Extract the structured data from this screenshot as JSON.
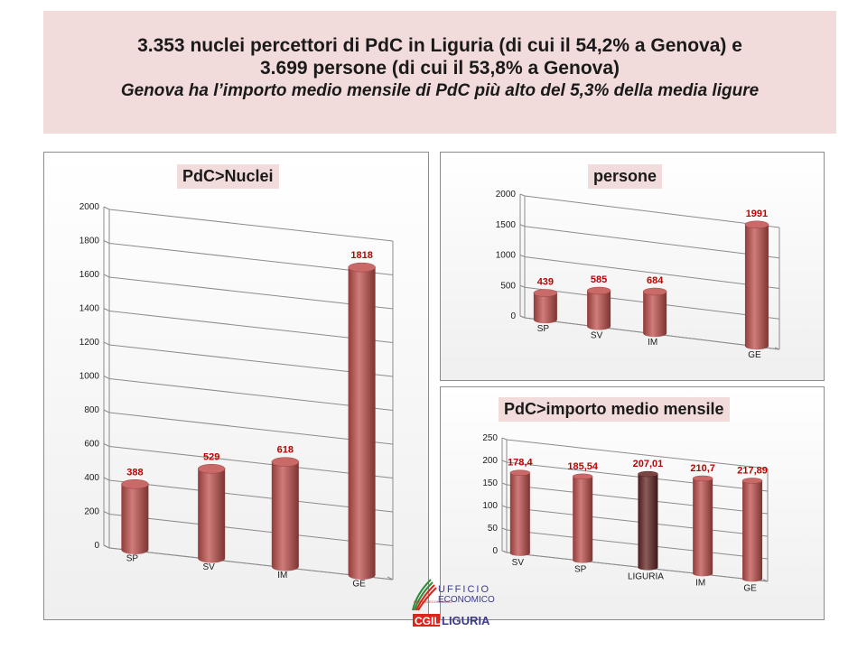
{
  "header": {
    "line1": "3.353 nuclei percettori di PdC in Liguria (di cui il 54,2% a Genova) e",
    "line2": "3.699 persone (di cui il 53,8% a Genova)",
    "line3": "Genova ha l’importo medio mensile di PdC più alto del 5,3% della media ligure"
  },
  "colors": {
    "bar": "#c0504d",
    "bar_highlight": "#632523",
    "label": "#c00000",
    "title_bg": "#f2dcdb"
  },
  "logo": {
    "line1": "UFFICIO",
    "line2": "ECONOMICO",
    "line3": "CGIL",
    "line4": "LIGURIA",
    "small": "UFFICIO ECONOMICO"
  },
  "chart_data": [
    {
      "type": "bar",
      "title": "PdC>Nuclei",
      "categories": [
        "SP",
        "SV",
        "IM",
        "GE"
      ],
      "values": [
        388,
        529,
        618,
        1818
      ],
      "labels": [
        "388",
        "529",
        "618",
        "1818"
      ],
      "yticks": [
        "0",
        "200",
        "400",
        "600",
        "800",
        "1000",
        "1200",
        "1400",
        "1600",
        "1800",
        "2000"
      ],
      "ylim": [
        0,
        2000
      ]
    },
    {
      "type": "bar",
      "title": "persone",
      "categories": [
        "SP",
        "SV",
        "IM",
        "GE"
      ],
      "values": [
        439,
        585,
        684,
        1991
      ],
      "labels": [
        "439",
        "585",
        "684",
        "1991"
      ],
      "yticks": [
        "0",
        "500",
        "1000",
        "1500",
        "2000"
      ],
      "ylim": [
        0,
        2000
      ]
    },
    {
      "type": "bar",
      "title": "PdC>importo medio mensile",
      "categories": [
        "SV",
        "SP",
        "LIGURIA",
        "IM",
        "GE"
      ],
      "values": [
        178.4,
        185.54,
        207.01,
        210.7,
        217.89
      ],
      "labels": [
        "178,4",
        "185,54",
        "207,01",
        "210,7",
        "217,89"
      ],
      "highlight": "LIGURIA",
      "yticks": [
        "0",
        "50",
        "100",
        "150",
        "200",
        "250"
      ],
      "ylim": [
        0,
        250
      ]
    }
  ]
}
